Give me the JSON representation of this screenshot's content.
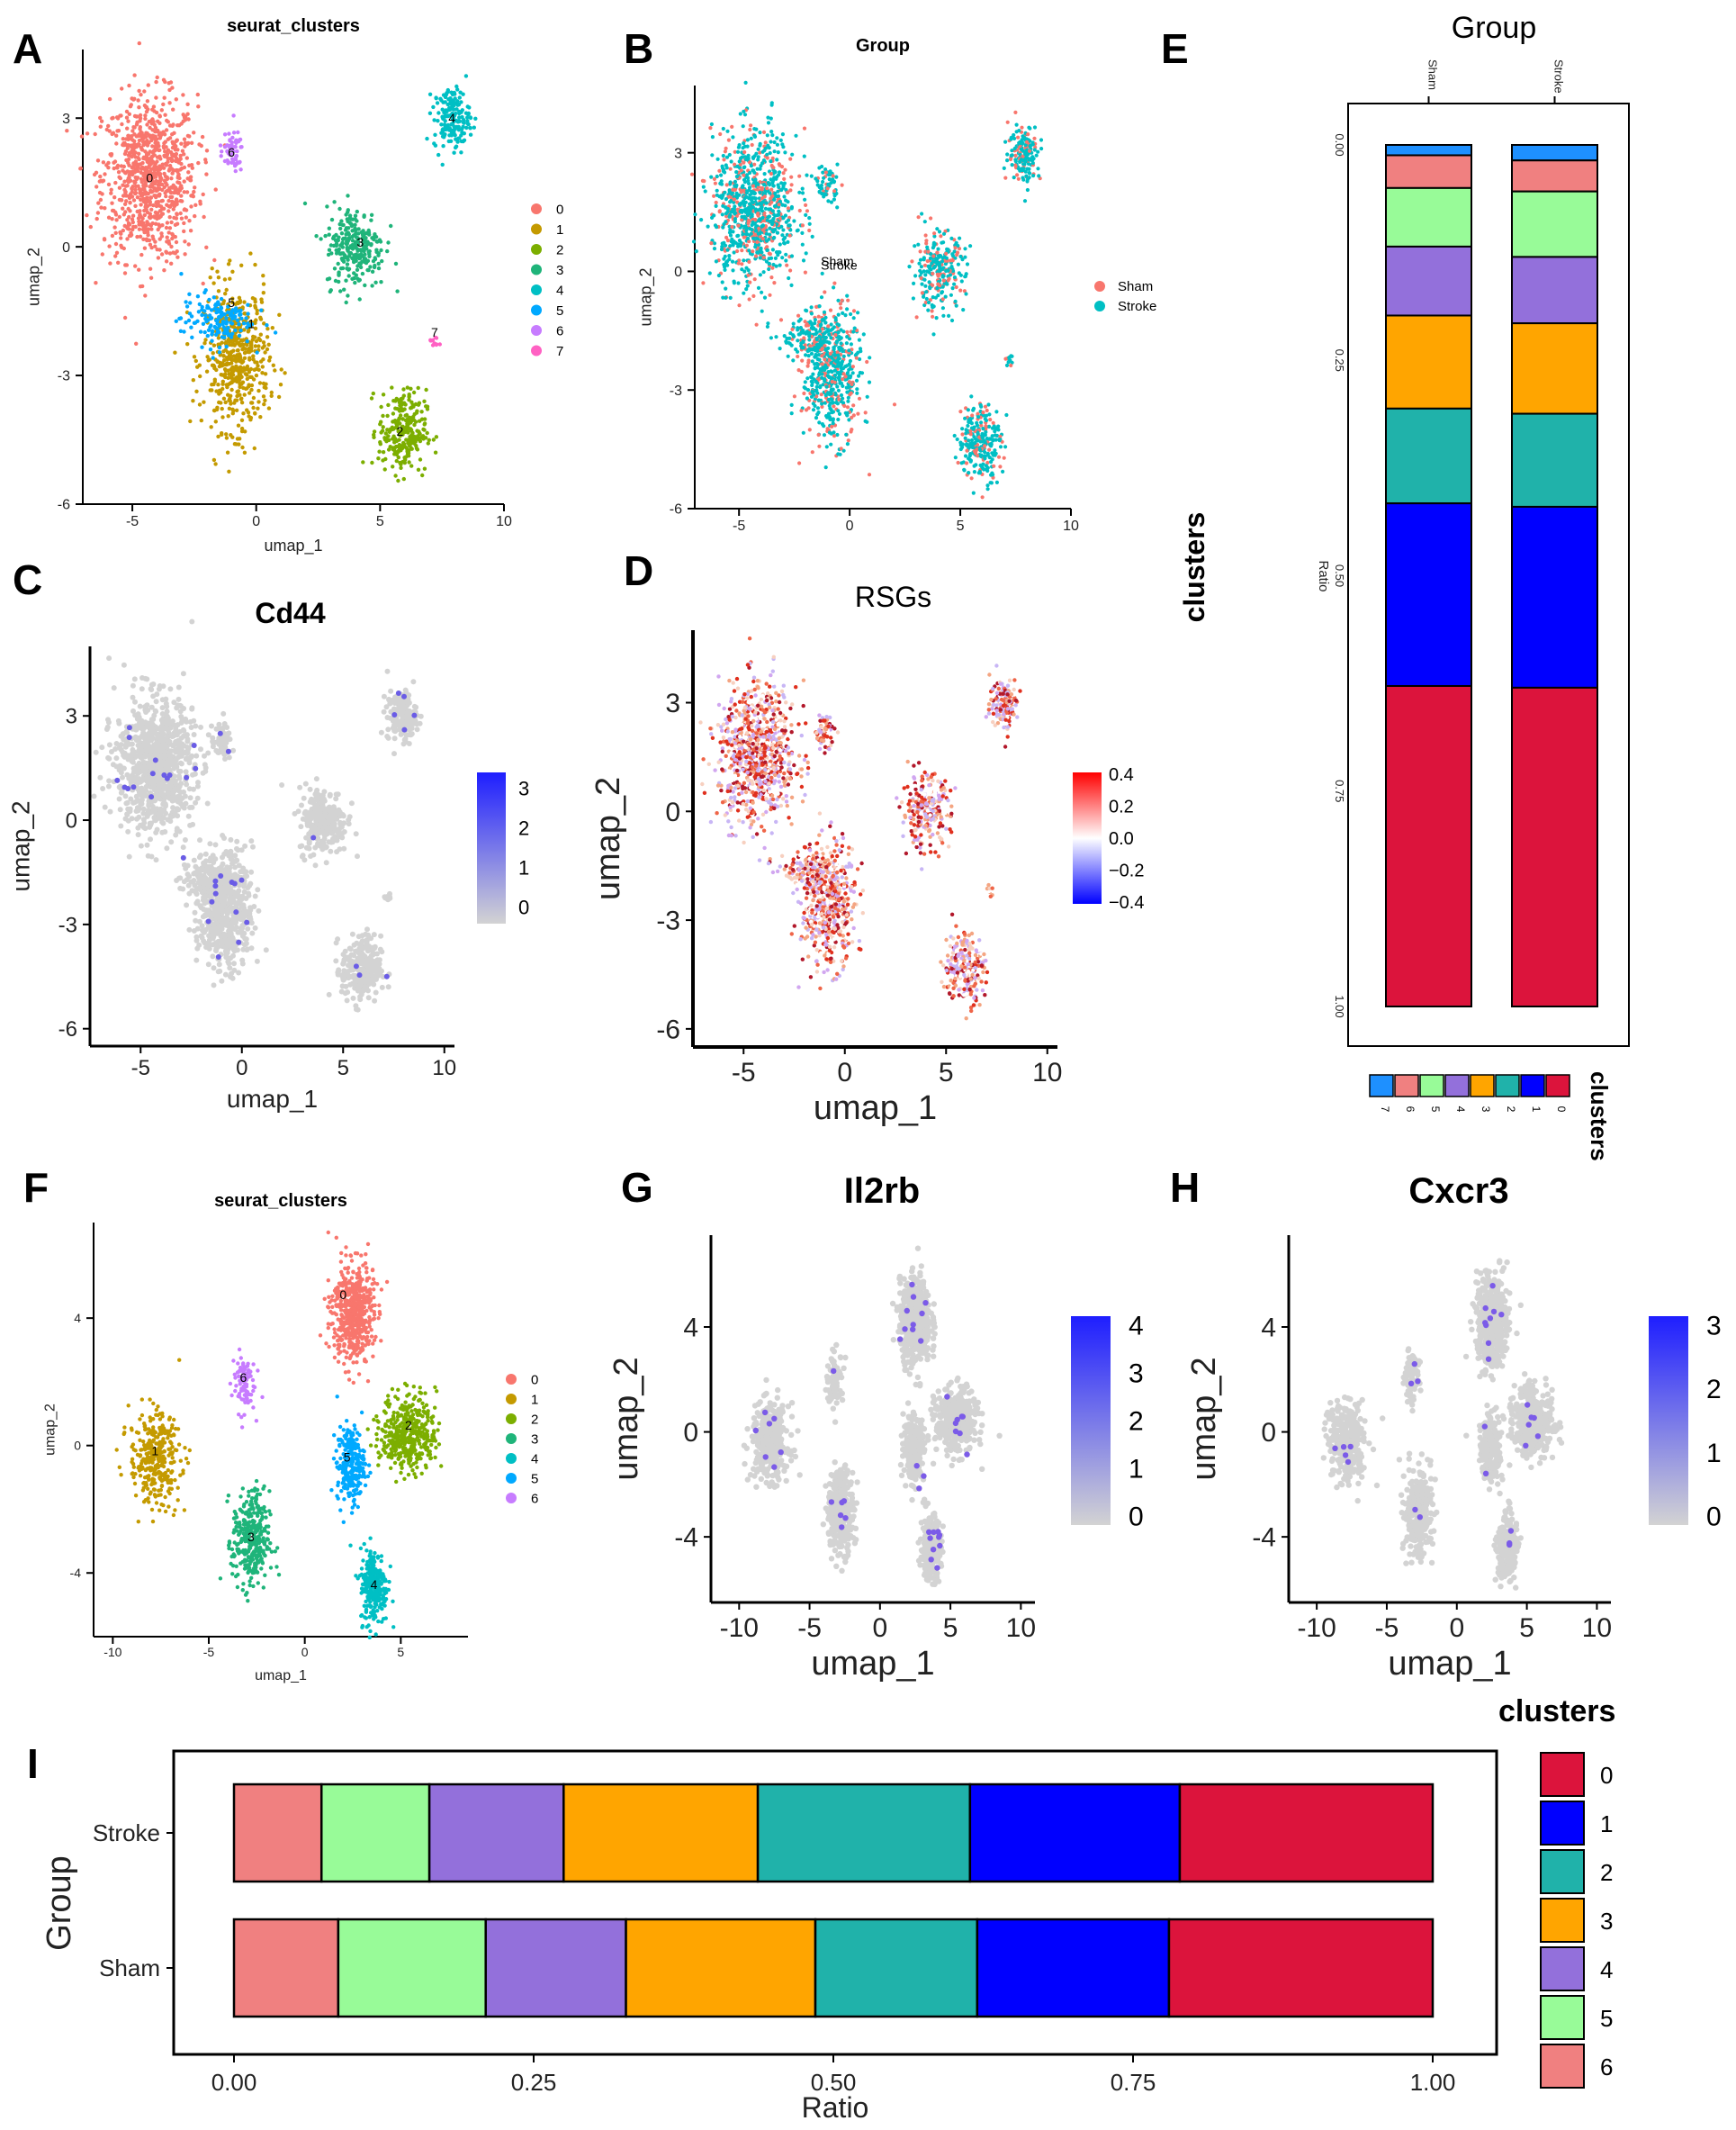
{
  "colors": {
    "c0": "#F8766D",
    "c1": "#C49A00",
    "c2": "#7CAE00",
    "c3": "#1FB47A",
    "c4": "#00BFC4",
    "c5": "#00A9FF",
    "c6": "#C77CFF",
    "c7": "#FF61C3",
    "sham": "#F8766D",
    "stroke": "#00BFC4",
    "bar0": "#DC143C",
    "bar1": "#0000FF",
    "bar2": "#20B2AA",
    "bar3": "#FFA500",
    "bar4": "#9370DB",
    "bar5": "#98FB98",
    "bar6": "#F08080",
    "bar7": "#1E90FF",
    "expr_low": "#D3D3D3",
    "expr_high": "#1E1EFF",
    "div_low": "#0000FF",
    "div_mid": "#FFFFFF",
    "div_high": "#FF0000"
  },
  "panel_labels": {
    "A": "A",
    "B": "B",
    "C": "C",
    "D": "D",
    "E": "E",
    "F": "F",
    "G": "G",
    "H": "H",
    "I": "I"
  },
  "chart_data": [
    {
      "id": "A",
      "type": "scatter",
      "title": "seurat_clusters",
      "xlabel": "umap_1",
      "ylabel": "umap_2",
      "xticks": [
        "-5",
        "0",
        "5",
        "10"
      ],
      "yticks": [
        "-6",
        "-3",
        "0",
        "3"
      ],
      "xlim": [
        -7,
        10
      ],
      "ylim": [
        -6,
        4.6
      ],
      "legend": [
        "0",
        "1",
        "2",
        "3",
        "4",
        "5",
        "6",
        "7"
      ],
      "cluster_labels": [
        {
          "text": "0",
          "x": -4.3,
          "y": 1.5
        },
        {
          "text": "1",
          "x": -0.2,
          "y": -1.9
        },
        {
          "text": "2",
          "x": 5.8,
          "y": -4.4
        },
        {
          "text": "3",
          "x": 4.2,
          "y": 0.0
        },
        {
          "text": "4",
          "x": 7.9,
          "y": 2.9
        },
        {
          "text": "5",
          "x": -1.0,
          "y": -1.4
        },
        {
          "text": "6",
          "x": -1.0,
          "y": 2.1
        },
        {
          "text": "7",
          "x": 7.2,
          "y": -2.1
        }
      ],
      "clusters": [
        {
          "id": 0,
          "x": -4.3,
          "y": 1.6,
          "sx": 1.6,
          "sy": 1.6,
          "n": 900
        },
        {
          "id": 1,
          "x": -0.8,
          "y": -2.6,
          "sx": 1.1,
          "sy": 1.4,
          "n": 520
        },
        {
          "id": 2,
          "x": 5.9,
          "y": -4.3,
          "sx": 0.8,
          "sy": 0.8,
          "n": 260
        },
        {
          "id": 3,
          "x": 4.0,
          "y": 0.0,
          "sx": 1.0,
          "sy": 0.8,
          "n": 260
        },
        {
          "id": 4,
          "x": 7.9,
          "y": 3.0,
          "sx": 0.6,
          "sy": 0.6,
          "n": 170
        },
        {
          "id": 5,
          "x": -1.6,
          "y": -1.7,
          "sx": 1.2,
          "sy": 0.5,
          "n": 150
        },
        {
          "id": 6,
          "x": -1.0,
          "y": 2.2,
          "sx": 0.4,
          "sy": 0.4,
          "n": 60
        },
        {
          "id": 7,
          "x": 7.2,
          "y": -2.2,
          "sx": 0.15,
          "sy": 0.15,
          "n": 12
        }
      ]
    },
    {
      "id": "B",
      "type": "scatter",
      "title": "Group",
      "xlabel": "",
      "ylabel": "umap_2",
      "xticks": [
        "-5",
        "0",
        "5",
        "10"
      ],
      "yticks": [
        "-6",
        "-3",
        "0",
        "3"
      ],
      "xlim": [
        -7,
        10
      ],
      "ylim": [
        -6,
        4.7
      ],
      "legend": [
        "Sham",
        "Stroke"
      ],
      "center_labels": [
        "Sham",
        "Stroke"
      ]
    },
    {
      "id": "C",
      "type": "scatter",
      "title": "Cd44",
      "xlabel": "umap_1",
      "ylabel": "umap_2",
      "xticks": [
        "-5",
        "0",
        "5",
        "10"
      ],
      "yticks": [
        "-6",
        "-3",
        "0",
        "3"
      ],
      "xlim": [
        -7.5,
        10.5
      ],
      "ylim": [
        -6.5,
        5
      ],
      "colorbar_ticks": [
        "3",
        "2",
        "1",
        "0"
      ]
    },
    {
      "id": "D",
      "type": "scatter",
      "title": "RSGs",
      "xlabel": "umap_1",
      "ylabel": "umap_2",
      "xticks": [
        "-5",
        "0",
        "5",
        "10"
      ],
      "yticks": [
        "-6",
        "-3",
        "0",
        "3"
      ],
      "xlim": [
        -7.5,
        10.5
      ],
      "ylim": [
        -6.5,
        5
      ],
      "colorbar_ticks": [
        "0.4",
        "0.2",
        "0.0",
        "−0.2",
        "−0.4"
      ]
    },
    {
      "id": "E",
      "type": "bar",
      "title": "Group",
      "orientation": "vertical-stacked",
      "categories": [
        "Sham",
        "Stroke"
      ],
      "ylabel": "Ratio",
      "legend_title": "clusters",
      "side_title": "clusters",
      "yticks": [
        "0.00",
        "0.25",
        "0.50",
        "0.75",
        "1.00"
      ],
      "series_order": [
        "7",
        "6",
        "5",
        "4",
        "3",
        "2",
        "1",
        "0"
      ],
      "legend": [
        "7",
        "6",
        "5",
        "4",
        "3",
        "2",
        "1",
        "0"
      ],
      "series": [
        {
          "name": "7",
          "values": [
            0.012,
            0.018
          ]
        },
        {
          "name": "6",
          "values": [
            0.038,
            0.036
          ]
        },
        {
          "name": "5",
          "values": [
            0.068,
            0.076
          ]
        },
        {
          "name": "4",
          "values": [
            0.08,
            0.077
          ]
        },
        {
          "name": "3",
          "values": [
            0.108,
            0.105
          ]
        },
        {
          "name": "2",
          "values": [
            0.11,
            0.108
          ]
        },
        {
          "name": "1",
          "values": [
            0.212,
            0.21
          ]
        },
        {
          "name": "0",
          "values": [
            0.372,
            0.37
          ]
        }
      ]
    },
    {
      "id": "F",
      "type": "scatter",
      "title": "seurat_clusters",
      "xlabel": "umap_1",
      "ylabel": "umap_2",
      "xticks": [
        "-10",
        "-5",
        "0",
        "5"
      ],
      "yticks": [
        "-4",
        "0",
        "4"
      ],
      "xlim": [
        -11,
        8.5
      ],
      "ylim": [
        -6,
        7
      ],
      "legend": [
        "0",
        "1",
        "2",
        "3",
        "4",
        "5",
        "6"
      ],
      "cluster_labels": [
        {
          "text": "0",
          "x": 2.0,
          "y": 4.6
        },
        {
          "text": "1",
          "x": -7.8,
          "y": -0.3
        },
        {
          "text": "2",
          "x": 5.4,
          "y": 0.5
        },
        {
          "text": "3",
          "x": -2.8,
          "y": -3.0
        },
        {
          "text": "4",
          "x": 3.6,
          "y": -4.5
        },
        {
          "text": "5",
          "x": 2.2,
          "y": -0.5
        },
        {
          "text": "6",
          "x": -3.2,
          "y": 2.0
        }
      ],
      "clusters": [
        {
          "id": 0,
          "x": 2.5,
          "y": 4.2,
          "sx": 0.9,
          "sy": 1.3,
          "n": 560
        },
        {
          "id": 1,
          "x": -7.8,
          "y": -0.4,
          "sx": 1.1,
          "sy": 1.2,
          "n": 340
        },
        {
          "id": 2,
          "x": 5.4,
          "y": 0.4,
          "sx": 1.2,
          "sy": 1.0,
          "n": 420
        },
        {
          "id": 3,
          "x": -2.8,
          "y": -3.0,
          "sx": 0.8,
          "sy": 1.3,
          "n": 320
        },
        {
          "id": 4,
          "x": 3.6,
          "y": -4.4,
          "sx": 0.6,
          "sy": 1.0,
          "n": 260
        },
        {
          "id": 5,
          "x": 2.4,
          "y": -0.6,
          "sx": 0.6,
          "sy": 1.0,
          "n": 240
        },
        {
          "id": 6,
          "x": -3.2,
          "y": 2.0,
          "sx": 0.5,
          "sy": 0.8,
          "n": 90
        }
      ]
    },
    {
      "id": "G",
      "type": "scatter",
      "title": "Il2rb",
      "xlabel": "umap_1",
      "ylabel": "umap_2",
      "xticks": [
        "-10",
        "-5",
        "0",
        "5",
        "10"
      ],
      "yticks": [
        "-4",
        "0",
        "4"
      ],
      "xlim": [
        -12,
        11
      ],
      "ylim": [
        -6.5,
        7.5
      ],
      "colorbar_ticks": [
        "4",
        "3",
        "2",
        "1",
        "0"
      ]
    },
    {
      "id": "H",
      "type": "scatter",
      "title": "Cxcr3",
      "xlabel": "umap_1",
      "ylabel": "umap_2",
      "xticks": [
        "-10",
        "-5",
        "0",
        "5",
        "10"
      ],
      "yticks": [
        "-4",
        "0",
        "4"
      ],
      "xlim": [
        -12,
        11
      ],
      "ylim": [
        -6.5,
        7.5
      ],
      "colorbar_ticks": [
        "3",
        "2",
        "1",
        "0"
      ]
    },
    {
      "id": "I",
      "type": "bar",
      "orientation": "horizontal-stacked",
      "categories": [
        "Stroke",
        "Sham"
      ],
      "xlabel": "Ratio",
      "ylabel": "Group",
      "xticks": [
        "0.00",
        "0.25",
        "0.50",
        "0.75",
        "1.00"
      ],
      "legend_title": "clusters",
      "legend": [
        "0",
        "1",
        "2",
        "3",
        "4",
        "5",
        "6"
      ],
      "series_order": [
        "6",
        "5",
        "4",
        "3",
        "2",
        "1",
        "0"
      ],
      "series": [
        {
          "name": "6",
          "values": [
            0.073,
            0.087
          ]
        },
        {
          "name": "5",
          "values": [
            0.09,
            0.123
          ]
        },
        {
          "name": "4",
          "values": [
            0.112,
            0.117
          ]
        },
        {
          "name": "3",
          "values": [
            0.162,
            0.158
          ]
        },
        {
          "name": "2",
          "values": [
            0.177,
            0.135
          ]
        },
        {
          "name": "1",
          "values": [
            0.175,
            0.16
          ]
        },
        {
          "name": "0",
          "values": [
            0.211,
            0.22
          ]
        }
      ]
    }
  ]
}
